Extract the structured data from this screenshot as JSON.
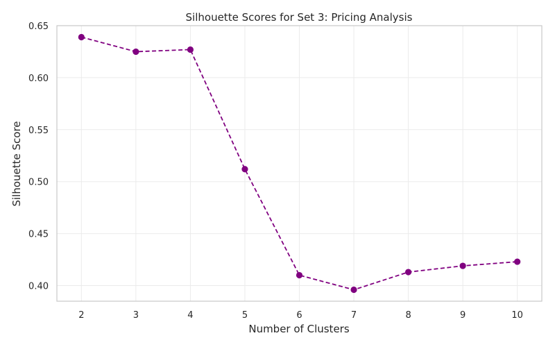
{
  "chart_data": {
    "type": "line",
    "title": "Silhouette Scores for Set 3: Pricing Analysis",
    "xlabel": "Number of Clusters",
    "ylabel": "Silhouette Score",
    "x": [
      2,
      3,
      4,
      5,
      6,
      7,
      8,
      9,
      10
    ],
    "series": [
      {
        "values": [
          0.639,
          0.625,
          0.627,
          0.512,
          0.41,
          0.396,
          0.413,
          0.419,
          0.423
        ],
        "color": "#800080",
        "line_style": "dashed",
        "marker": "circle"
      }
    ],
    "xlim": [
      1.55,
      10.45
    ],
    "ylim": [
      0.385,
      0.65
    ],
    "xticks": [
      "2",
      "3",
      "4",
      "5",
      "6",
      "7",
      "8",
      "9",
      "10"
    ],
    "yticks": [
      "0.40",
      "0.45",
      "0.50",
      "0.55",
      "0.60",
      "0.65"
    ],
    "grid": true
  }
}
